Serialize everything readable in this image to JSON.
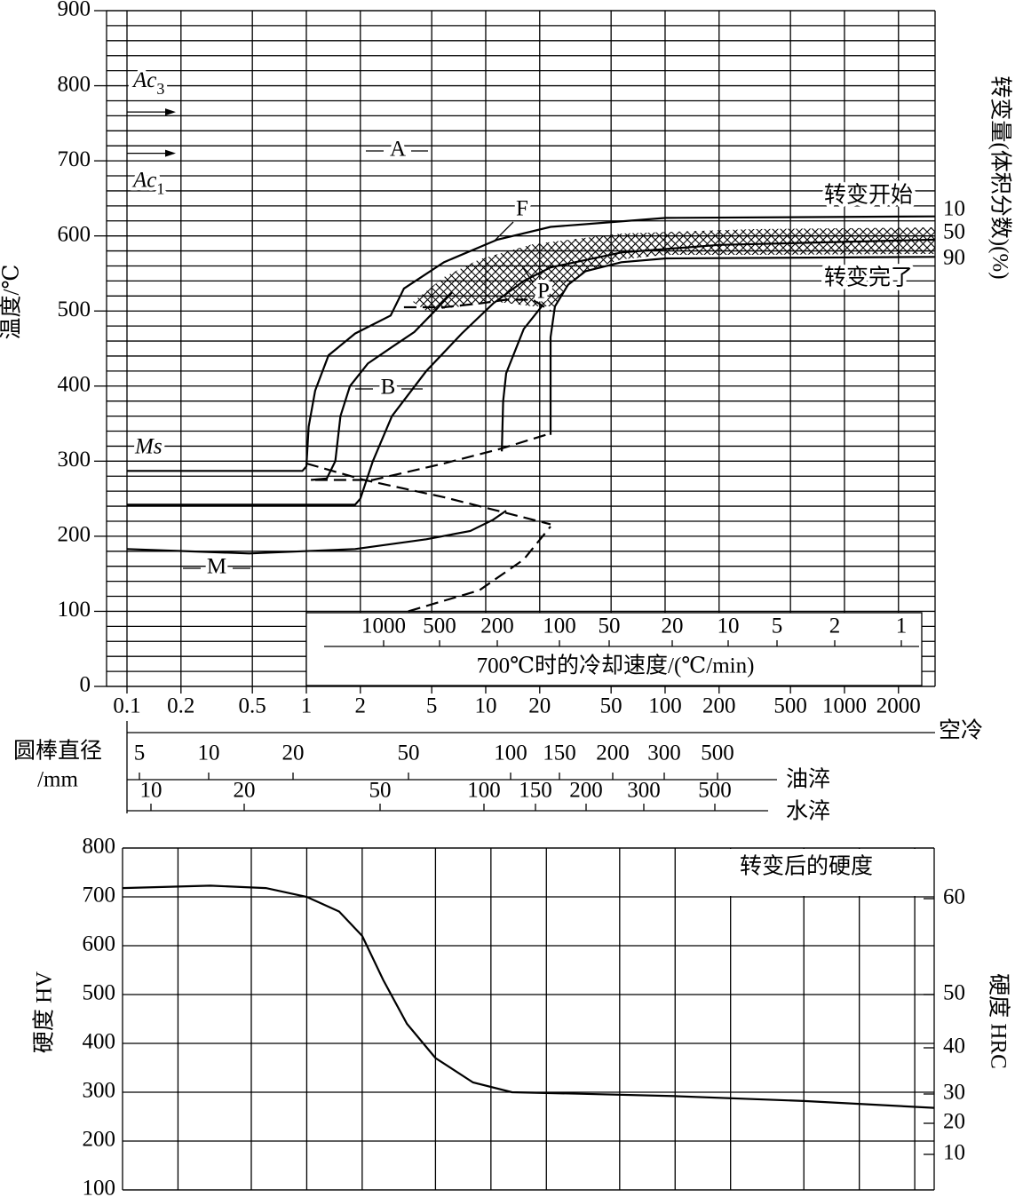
{
  "chart_data": [
    {
      "type": "cct",
      "y_label": "温度/℃",
      "y2_label": "转变量(体积分数)(%)",
      "xscale": "log",
      "xlim": [
        0.1,
        3200
      ],
      "xticks": [
        0.1,
        0.2,
        0.5,
        1,
        2,
        5,
        10,
        20,
        50,
        100,
        200,
        500,
        1000,
        2000
      ],
      "ylim": [
        0,
        900
      ],
      "yticks": [
        0,
        100,
        200,
        300,
        400,
        500,
        600,
        700,
        800,
        900
      ],
      "y_minor_grid": [
        20,
        40,
        60,
        80,
        120,
        140,
        160,
        180,
        220,
        240,
        260,
        280,
        320,
        340,
        360,
        380,
        420,
        440,
        460,
        480,
        520,
        540,
        560,
        580,
        620,
        640,
        660,
        680,
        720,
        740,
        760,
        780,
        820,
        840,
        860,
        880
      ],
      "grid": true,
      "color": "#000000",
      "curves": [
        {
          "style": "solid",
          "x": [
            0.1,
            0.95,
            1.0,
            1.03,
            1.12,
            1.33,
            1.87,
            2.95,
            3.5,
            5.85,
            11.6,
            23,
            101,
            3200
          ],
          "values": [
            287,
            287,
            293,
            346,
            394,
            441,
            470,
            494,
            530,
            565,
            595,
            612,
            624,
            626
          ]
        },
        {
          "style": "solid",
          "x": [
            1.06,
            1.3,
            1.45,
            1.55,
            1.75,
            2.2,
            3.0,
            4.0,
            5.2,
            6.5
          ],
          "values": [
            275,
            277,
            300,
            360,
            400,
            430,
            452,
            472,
            500,
            525
          ]
        },
        {
          "style": "solid",
          "x": [
            0.1,
            1.87,
            2.0,
            2.35,
            3.0,
            4.66,
            7.35,
            11,
            16.3,
            23,
            57,
            200,
            3200
          ],
          "values": [
            242,
            242,
            250,
            300,
            360,
            420,
            470,
            510,
            540,
            558,
            578,
            588,
            595
          ]
        },
        {
          "style": "solid",
          "x": [
            12.3,
            12.5,
            13,
            16.3,
            20.5
          ],
          "values": [
            313,
            380,
            417,
            476,
            506
          ]
        },
        {
          "style": "solid",
          "x": [
            23,
            23,
            24.3,
            28.8,
            36,
            57,
            101,
            3200
          ],
          "values": [
            335,
            465,
            506,
            535,
            553,
            565,
            570,
            572
          ]
        },
        {
          "style": "solid",
          "x": [
            0.1,
            0.48,
            1.87,
            4.66,
            8.2,
            11,
            13
          ],
          "values": [
            183,
            177,
            183,
            196,
            207,
            222,
            234
          ]
        },
        {
          "style": "dashed",
          "x": [
            1.0,
            2.1,
            5.85,
            11.6,
            23
          ],
          "values": [
            297,
            275,
            252,
            234,
            216
          ]
        },
        {
          "style": "dashed",
          "x": [
            1.12,
            2.35,
            5.85,
            12.3,
            23
          ],
          "values": [
            275,
            275,
            297,
            317,
            337
          ]
        },
        {
          "style": "dashed",
          "x": [
            3.7,
            9.2,
            16.3,
            23
          ],
          "values": [
            100,
            128,
            169,
            213
          ]
        },
        {
          "style": "dashed",
          "x": [
            3.5,
            5.85,
            9.2,
            13,
            18.3,
            23
          ],
          "values": [
            505,
            505,
            510,
            515,
            515,
            500
          ]
        }
      ],
      "critical_points": [
        {
          "text": "Ac",
          "sub": "3",
          "value": 765
        },
        {
          "text": "Ac",
          "sub": "1",
          "value": 710
        }
      ],
      "ms_label": "Ms",
      "annotations": [
        "A",
        "F",
        "P",
        "B",
        "M"
      ],
      "curve_labels": [
        "转变开始",
        "转变完了"
      ],
      "fraction_labels": [
        10,
        50,
        90
      ],
      "cooling_rate": {
        "title": "700℃时的冷却速度/(℃/min)",
        "ticks": [
          1000,
          500,
          200,
          100,
          50,
          20,
          10,
          5,
          2,
          1
        ]
      },
      "bar_diameter": {
        "title": [
          "圆棒直径",
          "/mm"
        ],
        "scales": [
          {
            "name": "空冷"
          },
          {
            "name": "油淬",
            "ticks": [
              5,
              10,
              20,
              50,
              100,
              150,
              200,
              300,
              500
            ]
          },
          {
            "name": "水淬",
            "ticks": [
              10,
              20,
              50,
              100,
              150,
              200,
              300,
              500
            ]
          }
        ]
      }
    },
    {
      "type": "line",
      "title": "转变后的硬度",
      "y_label": "硬度 HV",
      "y2_label": "硬度 HRC",
      "xscale": "log",
      "xlim": [
        0.1,
        2550
      ],
      "xticks": [
        0.2,
        0.5,
        1,
        2,
        5,
        10,
        20,
        50,
        100,
        200,
        500,
        1000,
        2000
      ],
      "ylim": [
        100,
        800
      ],
      "yticks": [
        100,
        200,
        300,
        400,
        500,
        600,
        700,
        800
      ],
      "y2ticks": [
        60,
        50,
        40,
        30,
        20,
        10
      ],
      "grid": true,
      "color": "#000000",
      "x": [
        0.1,
        0.3,
        0.6,
        1.0,
        1.5,
        2.0,
        2.6,
        3.5,
        5,
        8,
        13,
        30,
        100,
        500,
        2550
      ],
      "values": [
        718,
        723,
        718,
        700,
        670,
        620,
        530,
        440,
        370,
        320,
        300,
        297,
        292,
        282,
        268
      ]
    }
  ]
}
